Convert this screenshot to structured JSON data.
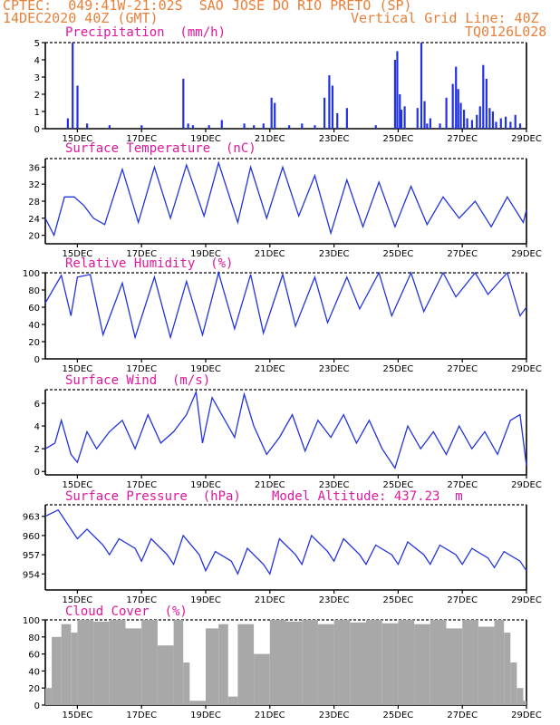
{
  "header": {
    "line1": "CPTEC:  049:41W-21:02S  SAO JOSE DO RIO PRETO (SP)",
    "line2_left": "14DEC2020 40Z (GMT)",
    "line2_right": "Vertical Grid Line: 40Z",
    "line3_right": "TQ0126L028"
  },
  "colors": {
    "header": "#e8803a",
    "title": "#e0189c",
    "series": "#2233dd",
    "cloud": "#a8a8a8"
  },
  "x_ticks": [
    "15DEC",
    "17DEC",
    "19DEC",
    "21DEC",
    "23DEC",
    "25DEC",
    "27DEC",
    "29DEC"
  ],
  "panels": {
    "precip": {
      "title": "Precipitation  (mm/h)",
      "ylim": [
        0,
        5
      ],
      "yticks": [
        "0",
        "1",
        "2",
        "3",
        "4",
        "5"
      ]
    },
    "temp": {
      "title": "Surface Temperature  (nC)",
      "ylim": [
        18,
        38
      ],
      "yticks": [
        "20",
        "24",
        "28",
        "32",
        "36"
      ]
    },
    "humid": {
      "title": "Relative Humidity  (%)",
      "ylim": [
        0,
        100
      ],
      "yticks": [
        "0",
        "20",
        "40",
        "60",
        "80",
        "100"
      ]
    },
    "wind": {
      "title": "Surface Wind  (m/s)",
      "ylim": [
        -0.3,
        7.2
      ],
      "yticks": [
        "0",
        "2",
        "4",
        "6"
      ]
    },
    "press": {
      "title": "Surface Pressure  (hPa)",
      "subtitle": "Model Altitude: 437.23  m",
      "ylim": [
        951.5,
        964.8
      ],
      "yticks": [
        "954",
        "957",
        "960",
        "963"
      ]
    },
    "cloud": {
      "title": "Cloud Cover  (%)",
      "ylim": [
        0,
        100
      ],
      "yticks": [
        "0",
        "20",
        "40",
        "60",
        "80",
        "100"
      ]
    }
  },
  "chart_data": [
    {
      "type": "bar",
      "title": "Precipitation  (mm/h)",
      "x": [
        14.7,
        14.85,
        15.0,
        15.3,
        16.0,
        17.0,
        18.3,
        18.45,
        18.6,
        19.1,
        19.5,
        20.2,
        20.5,
        20.8,
        21.05,
        21.15,
        21.6,
        22.0,
        22.4,
        22.7,
        22.85,
        22.95,
        23.1,
        23.4,
        24.3,
        24.9,
        24.97,
        25.05,
        25.1,
        25.2,
        25.6,
        25.72,
        25.82,
        25.9,
        26.0,
        26.3,
        26.5,
        26.7,
        26.8,
        26.87,
        26.95,
        27.05,
        27.15,
        27.3,
        27.45,
        27.55,
        27.65,
        27.75,
        27.85,
        27.95,
        28.05,
        28.2,
        28.35,
        28.5,
        28.65,
        28.8
      ],
      "values": [
        0.6,
        5.0,
        2.5,
        0.3,
        0.2,
        0.2,
        2.9,
        0.3,
        0.2,
        0.2,
        0.5,
        0.3,
        0.2,
        0.3,
        1.8,
        1.5,
        0.2,
        0.3,
        0.2,
        1.8,
        3.1,
        2.5,
        0.9,
        1.2,
        0.2,
        4.0,
        4.5,
        2.0,
        1.1,
        1.3,
        1.2,
        5.0,
        1.6,
        0.3,
        0.6,
        0.3,
        1.8,
        2.6,
        3.6,
        2.3,
        1.5,
        1.1,
        0.6,
        0.5,
        0.8,
        1.3,
        3.7,
        2.9,
        1.2,
        1.0,
        0.4,
        0.6,
        0.7,
        0.4,
        0.8,
        0.3
      ]
    },
    {
      "type": "line",
      "title": "Surface Temperature  (nC)",
      "x": [
        14.0,
        14.27,
        14.6,
        14.9,
        15.2,
        15.5,
        15.85,
        16.4,
        16.9,
        17.4,
        17.9,
        18.4,
        18.95,
        19.4,
        20.0,
        20.4,
        20.9,
        21.4,
        21.9,
        22.4,
        22.9,
        23.4,
        23.9,
        24.4,
        24.9,
        25.4,
        25.9,
        26.4,
        26.9,
        27.4,
        27.9,
        28.4,
        28.9,
        29.0
      ],
      "values": [
        24.0,
        20.0,
        29.0,
        29.0,
        27.0,
        24.0,
        22.5,
        35.5,
        23.0,
        36.0,
        24.0,
        36.5,
        24.5,
        37.0,
        23.0,
        36.0,
        24.0,
        36.0,
        24.5,
        34.0,
        20.5,
        33.0,
        22.0,
        32.5,
        22.0,
        31.5,
        22.5,
        29.0,
        24.0,
        28.0,
        22.0,
        29.0,
        23.0,
        26.0
      ]
    },
    {
      "type": "line",
      "title": "Relative Humidity  (%)",
      "x": [
        14.0,
        14.5,
        14.8,
        15.0,
        15.4,
        15.8,
        16.4,
        16.8,
        17.4,
        17.9,
        18.4,
        18.9,
        19.4,
        19.9,
        20.4,
        20.8,
        21.4,
        21.8,
        22.4,
        22.8,
        23.4,
        23.8,
        24.4,
        24.8,
        25.4,
        25.8,
        26.4,
        26.8,
        27.4,
        27.8,
        28.4,
        28.8,
        29.0
      ],
      "values": [
        65,
        97,
        50,
        95,
        98,
        28,
        88,
        25,
        95,
        25,
        90,
        28,
        100,
        35,
        98,
        30,
        98,
        38,
        95,
        42,
        95,
        58,
        100,
        50,
        100,
        55,
        100,
        72,
        100,
        75,
        100,
        50,
        60
      ]
    },
    {
      "type": "line",
      "title": "Surface Wind  (m/s)",
      "x": [
        14.0,
        14.3,
        14.5,
        14.8,
        15.0,
        15.3,
        15.6,
        16.0,
        16.4,
        16.8,
        17.2,
        17.6,
        18.0,
        18.4,
        18.7,
        18.9,
        19.2,
        19.5,
        19.9,
        20.2,
        20.5,
        20.9,
        21.3,
        21.7,
        22.1,
        22.5,
        22.9,
        23.3,
        23.7,
        24.1,
        24.5,
        24.9,
        25.3,
        25.7,
        26.1,
        26.5,
        26.9,
        27.3,
        27.7,
        28.1,
        28.5,
        28.8,
        29.0
      ],
      "values": [
        2.0,
        2.5,
        4.5,
        1.5,
        0.8,
        3.5,
        2.0,
        3.5,
        4.5,
        2.0,
        5.0,
        2.5,
        3.5,
        5.0,
        7.0,
        2.5,
        6.5,
        5.0,
        3.0,
        6.8,
        4.0,
        1.5,
        3.0,
        5.0,
        1.8,
        4.5,
        3.0,
        5.0,
        2.5,
        4.5,
        2.0,
        0.3,
        4.0,
        2.0,
        3.5,
        1.5,
        4.0,
        2.0,
        3.5,
        1.5,
        4.5,
        5.0,
        0.5
      ]
    },
    {
      "type": "line",
      "title": "Surface Pressure  (hPa)",
      "x": [
        14.0,
        14.4,
        14.8,
        15.0,
        15.3,
        15.8,
        16.0,
        16.3,
        16.8,
        17.0,
        17.3,
        17.8,
        18.0,
        18.3,
        18.8,
        19.0,
        19.3,
        19.8,
        20.0,
        20.3,
        20.8,
        21.0,
        21.3,
        21.8,
        22.0,
        22.3,
        22.8,
        23.0,
        23.3,
        23.8,
        24.0,
        24.3,
        24.8,
        25.0,
        25.3,
        25.8,
        26.0,
        26.3,
        26.8,
        27.0,
        27.3,
        27.8,
        28.0,
        28.3,
        28.8,
        29.0
      ],
      "values": [
        963,
        964,
        961,
        959.5,
        961,
        958.5,
        957,
        959.5,
        958,
        956,
        959.5,
        957,
        955.5,
        960,
        957,
        954.5,
        957.5,
        956,
        954,
        958,
        955.5,
        954,
        959.5,
        957,
        955.5,
        960,
        957.5,
        956,
        959.5,
        957,
        955.5,
        958.5,
        957,
        955.5,
        959,
        957,
        955.5,
        958.5,
        957,
        955.5,
        958,
        956.5,
        955,
        957.5,
        956,
        954.5
      ]
    },
    {
      "type": "bar",
      "title": "Cloud Cover  (%)",
      "x": [
        14.0,
        14.2,
        14.5,
        14.8,
        15.0,
        15.5,
        16.0,
        16.5,
        17.0,
        17.5,
        18.0,
        18.3,
        18.5,
        19.0,
        19.4,
        19.7,
        20.0,
        20.5,
        21.0,
        21.5,
        22.0,
        22.5,
        23.0,
        23.5,
        24.0,
        24.5,
        25.0,
        25.5,
        26.0,
        26.5,
        27.0,
        27.5,
        28.0,
        28.3,
        28.5,
        28.7,
        28.9,
        29.0
      ],
      "values": [
        20,
        80,
        95,
        85,
        100,
        98,
        100,
        90,
        100,
        70,
        100,
        50,
        5,
        90,
        95,
        10,
        95,
        60,
        100,
        98,
        100,
        95,
        100,
        97,
        100,
        96,
        100,
        95,
        100,
        90,
        100,
        92,
        100,
        85,
        50,
        20,
        5,
        2
      ]
    }
  ]
}
